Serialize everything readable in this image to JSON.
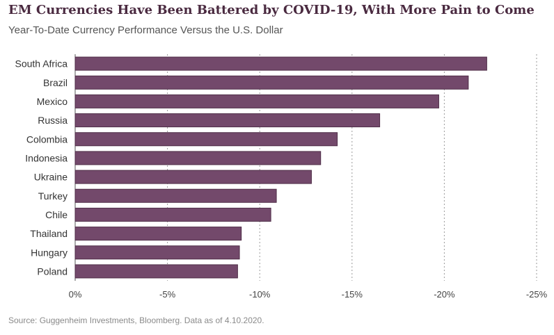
{
  "header": {
    "title": "EM Currencies Have Been Battered by COVID-19, With More Pain to Come",
    "subtitle": "Year-To-Date Currency Performance Versus the U.S. Dollar"
  },
  "footer": {
    "source": "Source: Guggenheim Investments, Bloomberg. Data as of 4.10.2020."
  },
  "colors": {
    "bar": "#73496b",
    "bar_stroke": "#4f2e48",
    "title": "#4a2a40",
    "gridline": "#9a9a9a"
  },
  "chart_data": {
    "type": "bar",
    "orientation": "horizontal",
    "title": "EM Currencies Have Been Battered by COVID-19, With More Pain to Come",
    "subtitle": "Year-To-Date Currency Performance Versus the U.S. Dollar",
    "categories": [
      "South Africa",
      "Brazil",
      "Mexico",
      "Russia",
      "Colombia",
      "Indonesia",
      "Ukraine",
      "Turkey",
      "Chile",
      "Thailand",
      "Hungary",
      "Poland"
    ],
    "values": [
      -22.3,
      -21.3,
      -19.7,
      -16.5,
      -14.2,
      -13.3,
      -12.8,
      -10.9,
      -10.6,
      -9.0,
      -8.9,
      -8.8
    ],
    "unit": "%",
    "xlim": [
      0,
      -25
    ],
    "xticks": [
      0,
      -5,
      -10,
      -15,
      -20,
      -25
    ],
    "xtick_labels": [
      "0%",
      "-5%",
      "-10%",
      "-15%",
      "-20%",
      "-25%"
    ],
    "grid": "vertical dashed",
    "legend": "none"
  }
}
